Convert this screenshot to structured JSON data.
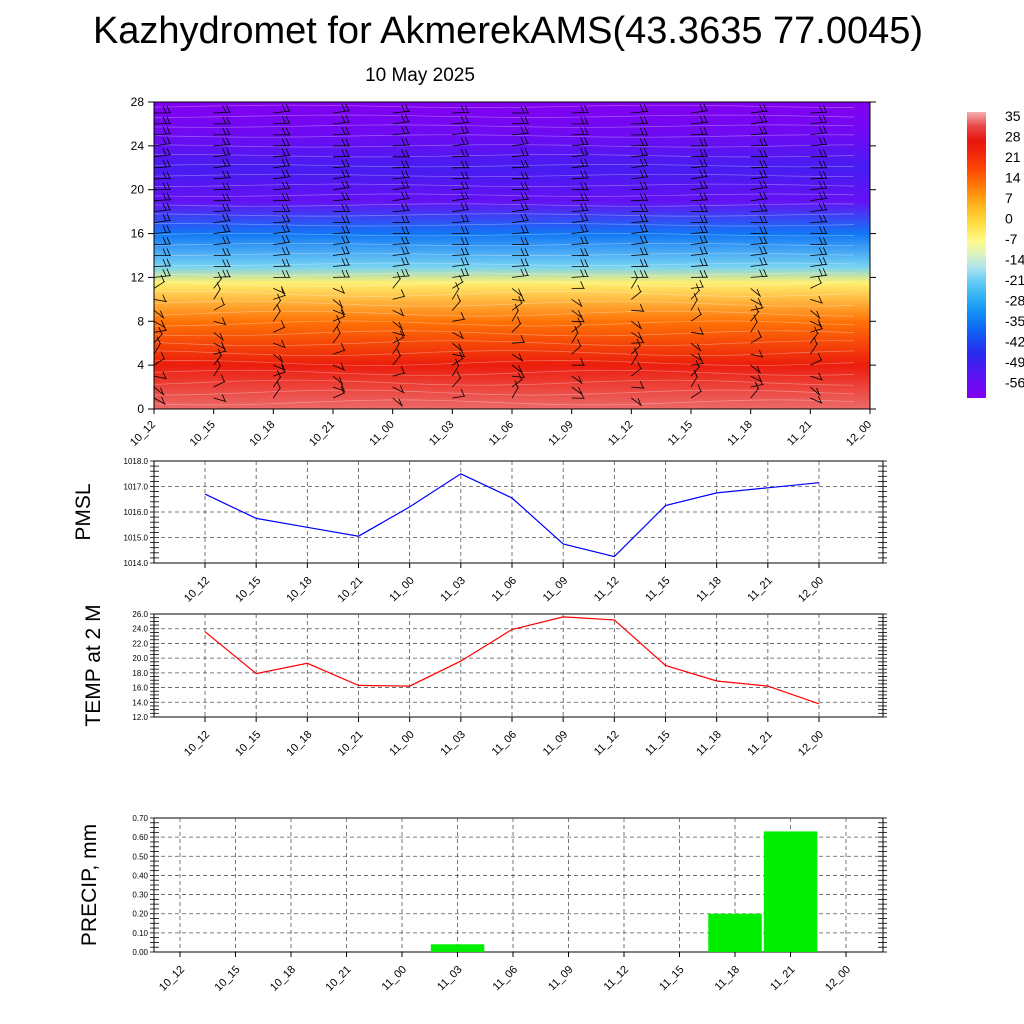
{
  "title": "Kazhydromet for AkmerekAMS(43.3635 77.0045)",
  "subtitle": "10 May 2025",
  "time_labels": [
    "10_12",
    "10_15",
    "10_18",
    "10_21",
    "11_00",
    "11_03",
    "11_06",
    "11_09",
    "11_12",
    "11_15",
    "11_18",
    "11_21",
    "12_00"
  ],
  "colors": {
    "pmsl_line": "#0000ff",
    "temp_line": "#ff0000",
    "precip_bar": "#00ee00"
  },
  "chart_data": [
    {
      "type": "heatmap",
      "description_levels_axis": "vertical levels",
      "x": [
        "10_12",
        "10_15",
        "10_18",
        "10_21",
        "11_00",
        "11_03",
        "11_06",
        "11_09",
        "11_12",
        "11_15",
        "11_18",
        "11_21",
        "12_00"
      ],
      "yticks": [
        0,
        4,
        8,
        12,
        16,
        20,
        24,
        28
      ],
      "ylim": [
        0,
        28
      ],
      "colorbar": {
        "labels": [
          "35",
          "28",
          "21",
          "14",
          "7",
          "0",
          "-7",
          "-14",
          "-21",
          "-28",
          "-35",
          "-42",
          "-49",
          "-56"
        ],
        "range": [
          -56,
          35
        ]
      },
      "profile": [
        {
          "level": 0,
          "value": 32
        },
        {
          "level": 4,
          "value": 24
        },
        {
          "level": 8,
          "value": 12
        },
        {
          "level": 11.5,
          "value": -4
        },
        {
          "level": 13,
          "value": -18
        },
        {
          "level": 16,
          "value": -32
        },
        {
          "level": 19,
          "value": -50
        },
        {
          "level": 22,
          "value": -46
        },
        {
          "level": 25,
          "value": -52
        },
        {
          "level": 28,
          "value": -56
        }
      ]
    },
    {
      "type": "line",
      "ylabel": "PMSL",
      "x": [
        "10_12",
        "10_15",
        "10_18",
        "10_21",
        "11_00",
        "11_03",
        "11_06",
        "11_09",
        "11_12",
        "11_15",
        "11_18",
        "11_21",
        "12_00"
      ],
      "values": [
        1016.7,
        1015.75,
        1015.4,
        1015.05,
        1016.2,
        1017.5,
        1016.55,
        1014.75,
        1014.25,
        1016.25,
        1016.75,
        1016.95,
        1017.15
      ],
      "ylim": [
        1014.0,
        1018.0
      ],
      "yticks": [
        "1014.0",
        "1015.0",
        "1016.0",
        "1017.0",
        "1018.0"
      ],
      "grid": true
    },
    {
      "type": "line",
      "ylabel": "TEMP at 2 M",
      "x": [
        "10_12",
        "10_15",
        "10_18",
        "10_21",
        "11_00",
        "11_03",
        "11_06",
        "11_09",
        "11_12",
        "11_15",
        "11_18",
        "11_21",
        "12_00"
      ],
      "values": [
        23.6,
        17.9,
        19.3,
        16.3,
        16.2,
        19.6,
        23.9,
        25.6,
        25.2,
        19.0,
        16.9,
        16.2,
        13.8
      ],
      "ylim": [
        12.0,
        26.0
      ],
      "yticks": [
        "12.0",
        "14.0",
        "16.0",
        "18.0",
        "20.0",
        "22.0",
        "24.0",
        "26.0"
      ],
      "grid": true
    },
    {
      "type": "bar",
      "ylabel": "PRECIP, mm",
      "categories": [
        "10_12",
        "10_15",
        "10_18",
        "10_21",
        "11_00",
        "11_03",
        "11_06",
        "11_09",
        "11_12",
        "11_15",
        "11_18",
        "11_21",
        "12_00"
      ],
      "values": [
        0,
        0,
        0,
        0,
        0,
        0.04,
        0,
        0,
        0,
        0,
        0.2,
        0.63,
        0
      ],
      "ylim": [
        0,
        0.7
      ],
      "yticks": [
        "0.00",
        "0.10",
        "0.20",
        "0.30",
        "0.40",
        "0.50",
        "0.60",
        "0.70"
      ],
      "grid": true
    }
  ]
}
